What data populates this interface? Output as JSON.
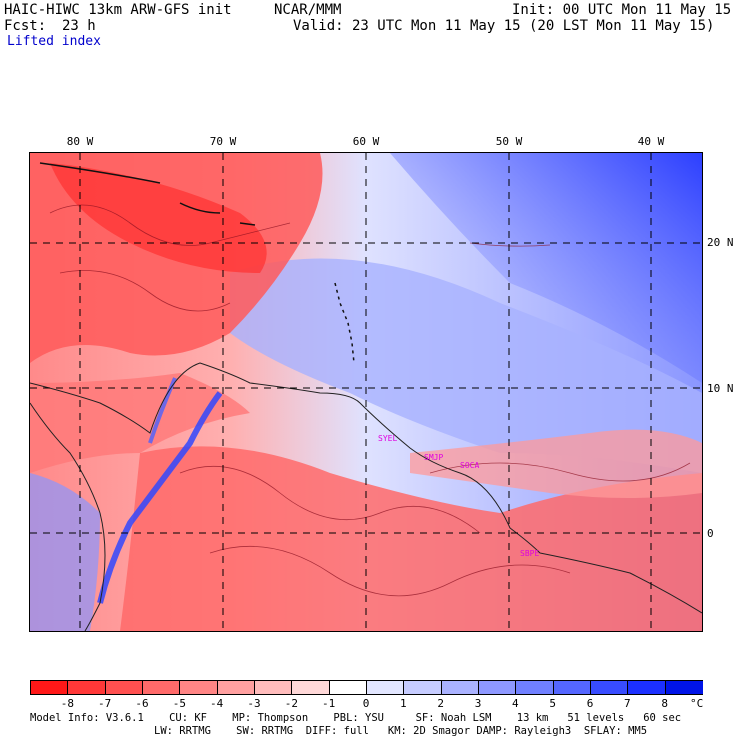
{
  "header": {
    "model": "HAIC-HIWC 13km ARW-GFS init",
    "org": "NCAR/MMM",
    "init": "Init: 00 UTC Mon 11 May 15",
    "fcst_label": "Fcst:",
    "fcst_value": "23 h",
    "valid": "Valid: 23 UTC Mon 11 May 15 (20 LST Mon 11 May 15)",
    "field": "Lifted index"
  },
  "map": {
    "lon_labels": [
      "80 W",
      "70 W",
      "60 W",
      "50 W",
      "40 W"
    ],
    "lat_labels": [
      "20 N",
      "10 N",
      "0"
    ],
    "stations": [
      "SYEL",
      "SMJP",
      "SOCA",
      "SBPE"
    ]
  },
  "colorbar": {
    "labels": [
      "-8",
      "-7",
      "-6",
      "-5",
      "-4",
      "-3",
      "-2",
      "-1",
      "0",
      "1",
      "2",
      "3",
      "4",
      "5",
      "6",
      "7",
      "8"
    ],
    "unit": "°C",
    "colors": [
      "#ff1818",
      "#ff3838",
      "#ff5050",
      "#ff6a6a",
      "#ff8585",
      "#ffa0a0",
      "#ffbcbc",
      "#ffd8d8",
      "#ffffff",
      "#e2e6ff",
      "#c6ccff",
      "#aab2ff",
      "#8e98ff",
      "#7080ff",
      "#5466ff",
      "#384cff",
      "#1c30ff",
      "#0014e8"
    ]
  },
  "footer": {
    "line1": "Model Info: V3.6.1    CU: KF    MP: Thompson    PBL: YSU     SF: Noah LSM    13 km   51 levels   60 sec",
    "line2": "LW: RRTMG    SW: RRTMG  DIFF: full   KM: 2D Smagor DAMP: Rayleigh3  SFLAY: MM5"
  }
}
